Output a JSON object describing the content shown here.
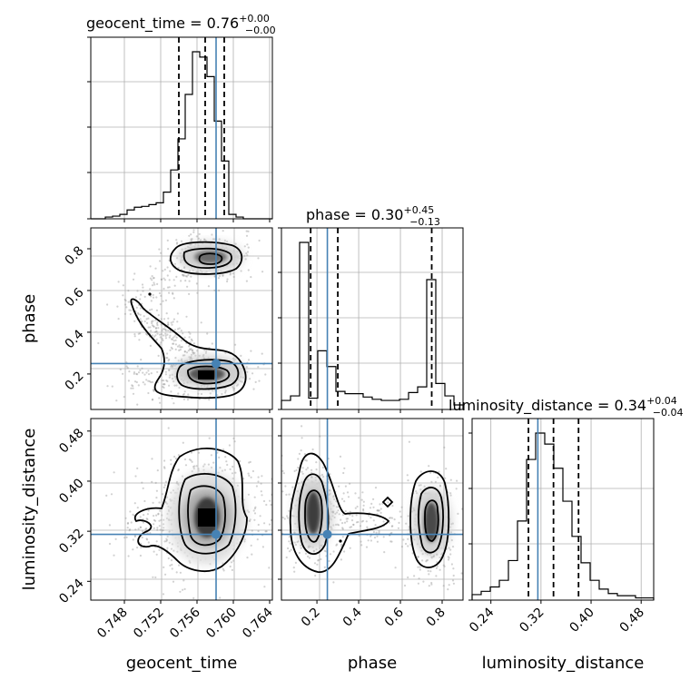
{
  "chart_data": {
    "type": "corner",
    "parameters": [
      "geocent_time",
      "phase",
      "luminosity_distance"
    ],
    "titles": [
      {
        "param": "geocent_time",
        "label": "geocent_time = 0.76",
        "plus": "+0.00",
        "minus": "−0.00"
      },
      {
        "param": "phase",
        "label": "phase = 0.30",
        "plus": "+0.45",
        "minus": "−0.13"
      },
      {
        "param": "luminosity_distance",
        "label": "luminosity_distance = 0.34",
        "plus": "+0.04",
        "minus": "−0.04"
      }
    ],
    "axes": {
      "geocent_time": {
        "range": [
          0.7443,
          0.7643
        ],
        "ticks": [
          0.748,
          0.752,
          0.756,
          0.76,
          0.764
        ],
        "tick_labels": [
          "0.748",
          "0.752",
          "0.756",
          "0.760",
          "0.764"
        ]
      },
      "phase": {
        "range": [
          0.03,
          0.9
        ],
        "ticks": [
          0.2,
          0.4,
          0.6,
          0.8
        ],
        "tick_labels": [
          "0.2",
          "0.4",
          "0.6",
          "0.8"
        ]
      },
      "luminosity_distance": {
        "range": [
          0.21,
          0.5
        ],
        "ticks": [
          0.24,
          0.32,
          0.4,
          0.48
        ],
        "tick_labels": [
          "0.24",
          "0.32",
          "0.40",
          "0.48"
        ]
      }
    },
    "truths": {
      "geocent_time": 0.7581,
      "phase": 0.25,
      "luminosity_distance": 0.315
    },
    "quantiles": {
      "geocent_time": [
        0.754,
        0.7569,
        0.759
      ],
      "phase": [
        0.17,
        0.3,
        0.75
      ],
      "luminosity_distance": [
        0.3,
        0.34,
        0.38
      ]
    },
    "histograms": {
      "geocent_time": {
        "bins": 25,
        "counts": [
          0,
          0,
          2,
          3,
          5,
          10,
          13,
          14,
          16,
          18,
          30,
          55,
          90,
          140,
          188,
          182,
          160,
          110,
          65,
          5,
          2,
          0,
          0,
          0,
          0
        ]
      },
      "phase": {
        "bins": 20,
        "counts": [
          8,
          12,
          148,
          10,
          52,
          38,
          16,
          14,
          14,
          11,
          9,
          8,
          8,
          9,
          15,
          20,
          115,
          23,
          12,
          4
        ]
      },
      "luminosity_distance": {
        "bins": 20,
        "counts": [
          5,
          8,
          12,
          18,
          36,
          72,
          128,
          152,
          142,
          120,
          90,
          58,
          34,
          18,
          10,
          6,
          4,
          4,
          2,
          2
        ]
      }
    },
    "xlabels": [
      "geocent_time",
      "phase",
      "luminosity_distance"
    ],
    "ylabels": [
      "",
      "phase",
      "luminosity_distance"
    ]
  }
}
